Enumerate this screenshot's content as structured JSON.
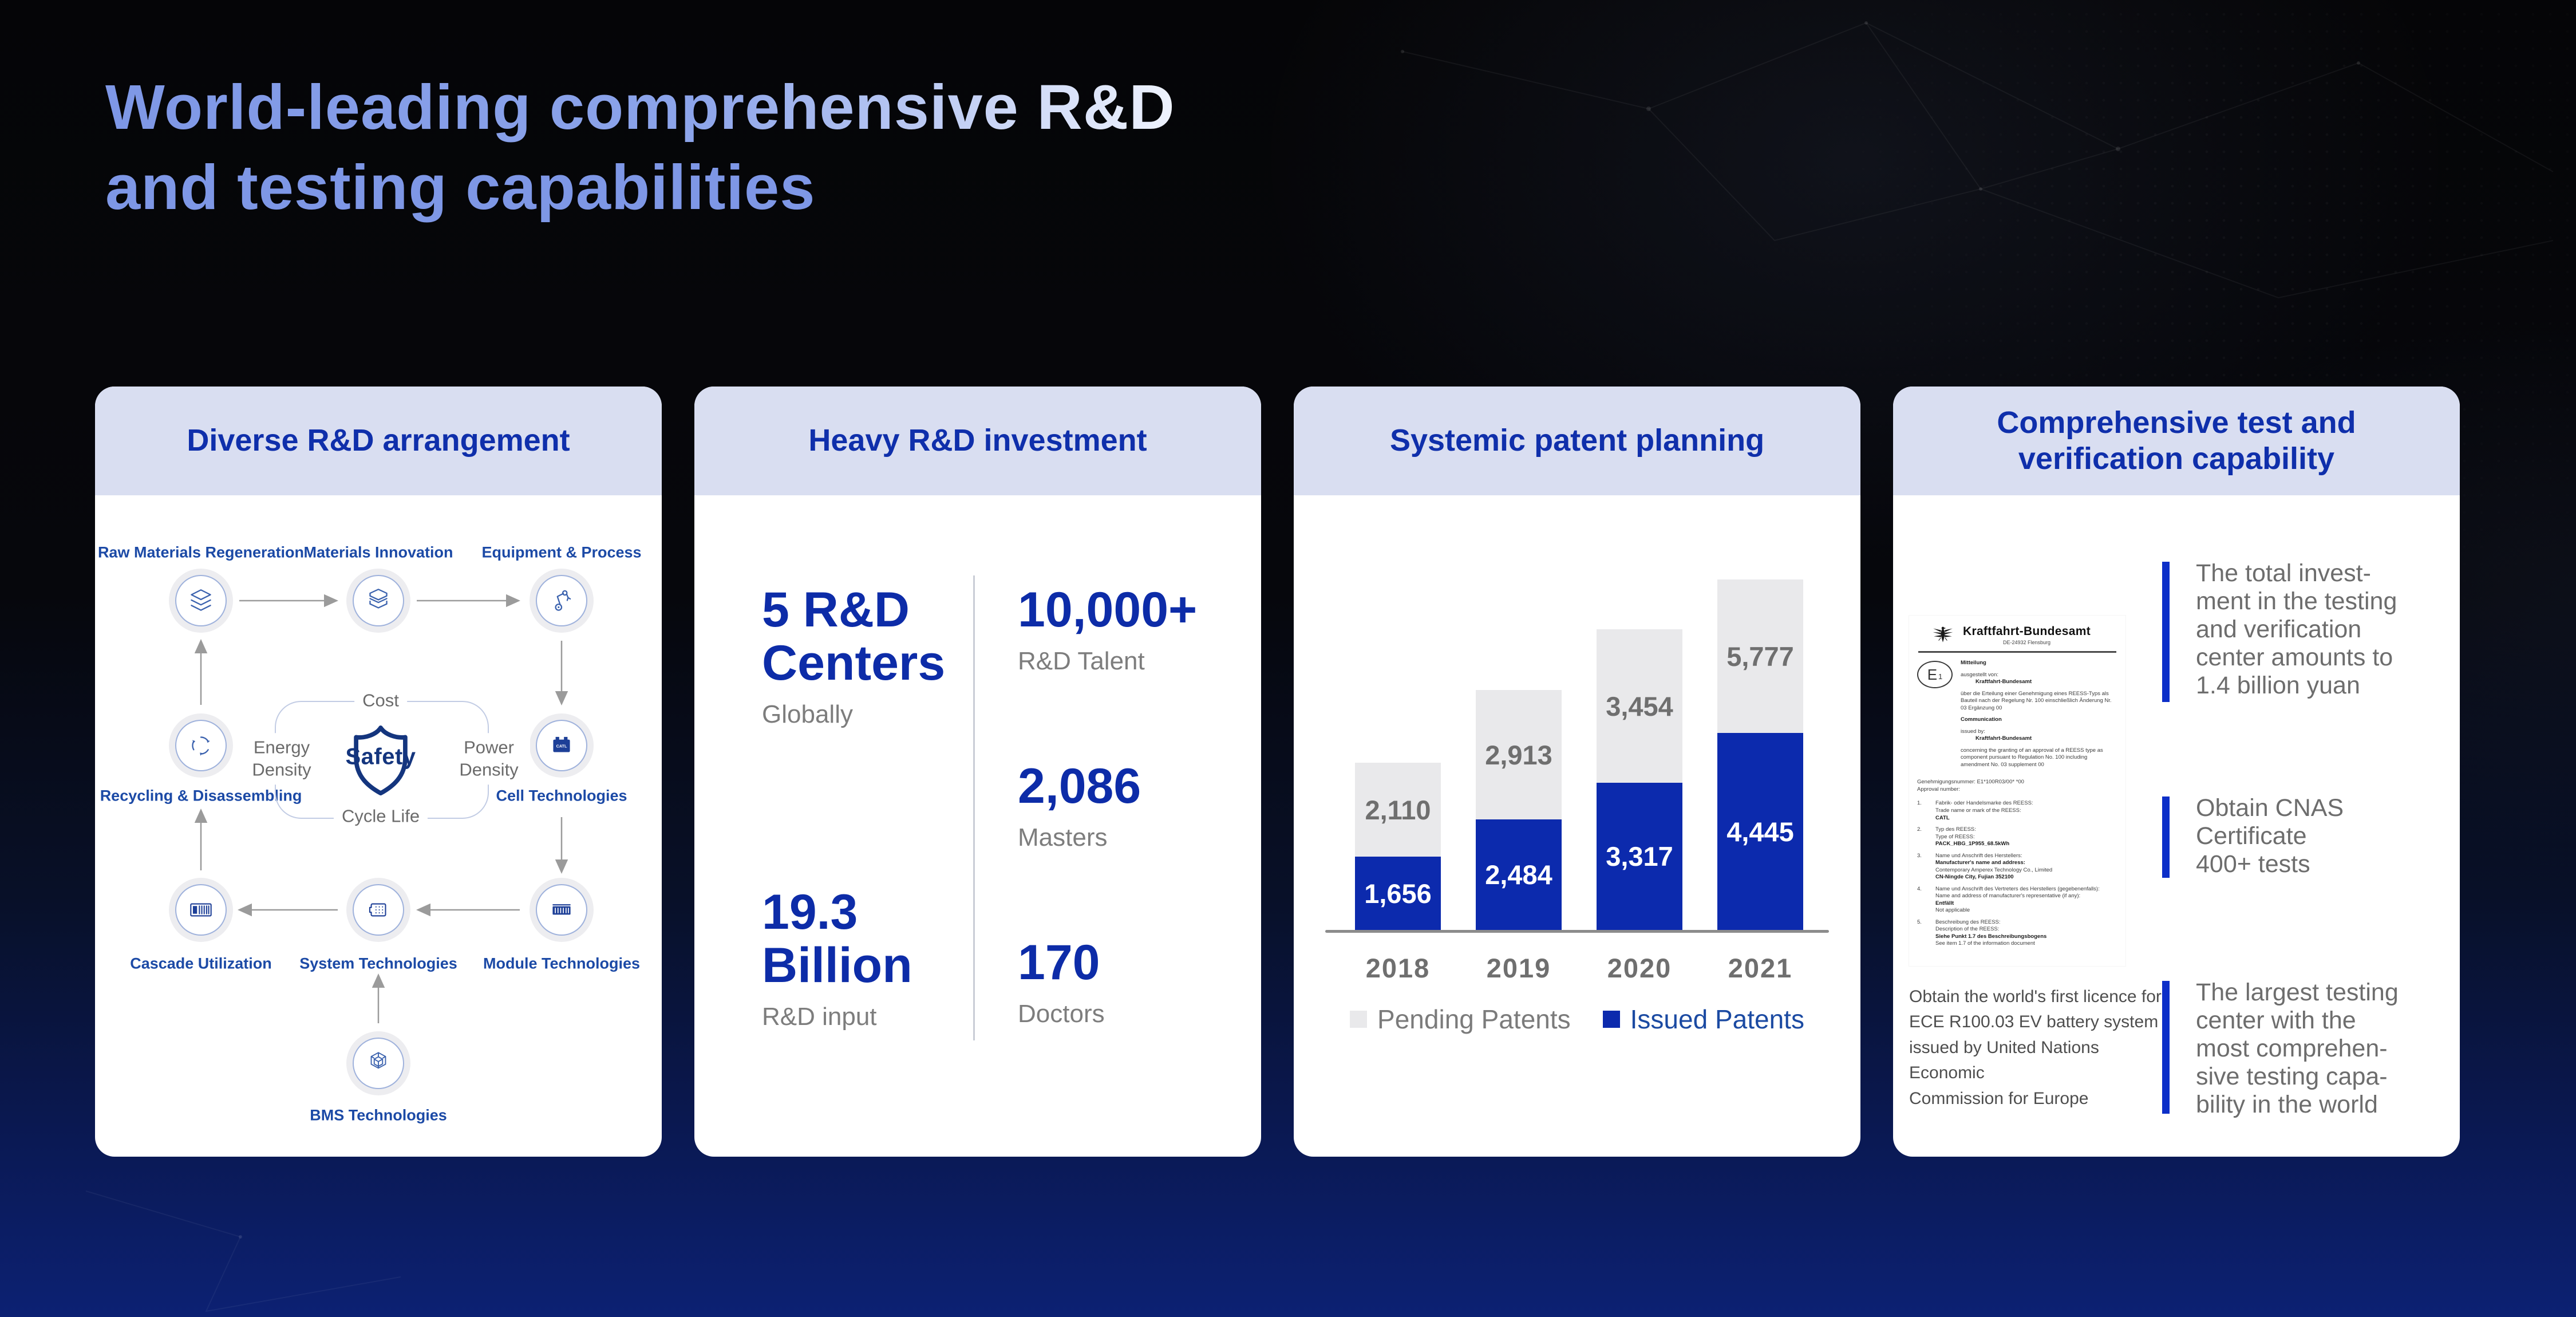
{
  "slide": {
    "title_line1": "World-leading comprehensive R&D",
    "title_line2": "and testing capabilities"
  },
  "colors": {
    "brand_blue": "#0D2CA8",
    "header_band": "#D9DEF1",
    "header_text": "#0F2FAB",
    "bar_issued_blue": "#0C2AAD",
    "bar_pending_gray": "#E9E9EB",
    "accent_bar_blue": "#0D2FC8",
    "title_light_blue": "#7E97E6",
    "node_label_blue": "#1C4AA6",
    "gray_text": "#6d6d6d"
  },
  "cards": {
    "rnd": {
      "header": "Diverse R&D arrangement",
      "nodes": {
        "raw": {
          "label": "Raw Materials Regeneration"
        },
        "innovation": {
          "label": "Materials Innovation"
        },
        "equipment": {
          "label": "Equipment & Process"
        },
        "recycling": {
          "label": "Recycling & Disassembling"
        },
        "cell": {
          "label": "Cell Technologies",
          "badge": "CATL"
        },
        "cascade": {
          "label": "Cascade Utilization"
        },
        "system": {
          "label": "System Technologies"
        },
        "module": {
          "label": "Module Technologies"
        },
        "bms": {
          "label": "BMS Technologies"
        }
      },
      "safety": {
        "center": "Safety",
        "top": "Cost",
        "left": "Energy Density",
        "right": "Power Density",
        "bottom": "Cycle Life"
      }
    },
    "investment": {
      "header": "Heavy R&D investment",
      "stats": {
        "centers": {
          "value": "5 R&D\nCenters",
          "label": "Globally"
        },
        "talent": {
          "value": "10,000+",
          "label": "R&D Talent"
        },
        "masters": {
          "value": "2,086",
          "label": "Masters"
        },
        "input": {
          "value": "19.3\nBillion",
          "label": "R&D input"
        },
        "doctors": {
          "value": "170",
          "label": "Doctors"
        }
      }
    },
    "patents": {
      "header": "Systemic patent planning"
    },
    "testing": {
      "header": "Comprehensive test and\nverification capability",
      "blocks": [
        {
          "text": "The total invest-\nment in the testing\nand verification\ncenter amounts to\n1.4 billion yuan"
        },
        {
          "text": "Obtain CNAS\nCertificate\n400+ tests"
        },
        {
          "text": "The largest testing\ncenter with the\nmost comprehen-\nsive testing capa-\nbility in the world"
        }
      ],
      "note": "Obtain the world's first licence for\nECE R100.03 EV battery system\nissued by United Nations Economic\nCommission for Europe",
      "certificate": {
        "authority": "Kraftfahrt-Bundesamt",
        "address": "DE-24932 Flensburg",
        "mark_e": "E",
        "mark_num": "1",
        "sections": [
          {
            "lines": [
              {
                "t": "Mitteilung",
                "b": 1
              }
            ]
          },
          {
            "lines": [
              {
                "t": "ausgestellt von:"
              },
              {
                "t": "Kraftfahrt-Bundesamt",
                "b": 1,
                "i": 1
              }
            ]
          },
          {
            "lines": [
              {
                "t": "über die Erteilung einer Genehmigung eines REESS-Typs als Bauteil nach der Regelung Nr. 100 einschließlich Änderung Nr. 03 Ergänzung 00"
              }
            ]
          },
          {
            "lines": [
              {
                "t": "Communication",
                "b": 1
              }
            ]
          },
          {
            "lines": [
              {
                "t": "issued by:"
              },
              {
                "t": "Kraftfahrt-Bundesamt",
                "b": 1,
                "i": 1
              }
            ]
          },
          {
            "lines": [
              {
                "t": "concerning the granting of an approval of a REESS type as component pursuant to Regulation No. 100 including amendment No. 03 supplement 00"
              }
            ]
          }
        ],
        "approval": [
          {
            "t": "Genehmigungsnummer:  E1*100R03/00*        *00"
          },
          {
            "t": "Approval number:"
          }
        ],
        "items": [
          {
            "n": "1.",
            "lines": [
              {
                "t": "Fabrik- oder Handelsmarke des REESS:"
              },
              {
                "t": "Trade name or mark of the REESS:"
              },
              {
                "t": "CATL",
                "b": 1
              }
            ]
          },
          {
            "n": "2.",
            "lines": [
              {
                "t": "Typ des REESS:"
              },
              {
                "t": "Type of REESS:"
              },
              {
                "t": "PACK_HBG_1P955_68.5kWh",
                "b": 1
              }
            ]
          },
          {
            "n": "3.",
            "lines": [
              {
                "t": "Name und Anschrift des Herstellers:"
              },
              {
                "t": "Manufacturer's name and address:",
                "b": 1
              },
              {
                "t": "Contemporary Amperex Technology Co., Limited"
              },
              {
                "t": "CN-Ningde City, Fujian 352100",
                "b": 1
              }
            ]
          },
          {
            "n": "4.",
            "lines": [
              {
                "t": "Name und Anschrift des Vertreters des Herstellers (gegebenenfalls):"
              },
              {
                "t": "Name and address of manufacturer's representative (if any):"
              },
              {
                "t": "Entfällt",
                "b": 1
              },
              {
                "t": "Not applicable"
              }
            ]
          },
          {
            "n": "5.",
            "lines": [
              {
                "t": "Beschreibung des REESS:"
              },
              {
                "t": "Description of the REESS:"
              },
              {
                "t": "Siehe Punkt 1.7 des Beschreibungsbogens",
                "b": 1
              },
              {
                "t": "See item 1.7 of the information document"
              }
            ]
          }
        ]
      }
    }
  },
  "chart_data": {
    "type": "bar",
    "stacked": true,
    "title": "Systemic patent planning",
    "categories": [
      "2018",
      "2019",
      "2020",
      "2021"
    ],
    "series": [
      {
        "name": "Issued Patents",
        "color": "#0C2AAD",
        "values": [
          1656,
          2484,
          3317,
          4445
        ],
        "labels": [
          "1,656",
          "2,484",
          "3,317",
          "4,445"
        ]
      },
      {
        "name": "Pending Patents",
        "color": "#E9E9EB",
        "values": [
          2110,
          2913,
          3454,
          5777
        ],
        "labels": [
          "2,110",
          "2,913",
          "3,454",
          "5,777"
        ]
      }
    ],
    "legend": [
      {
        "label": "Pending Patents"
      },
      {
        "label": "Issued Patents"
      }
    ],
    "xlabel": "",
    "ylabel": "",
    "grid": false,
    "legend_position": "bottom",
    "value_labels": "inside segments"
  }
}
